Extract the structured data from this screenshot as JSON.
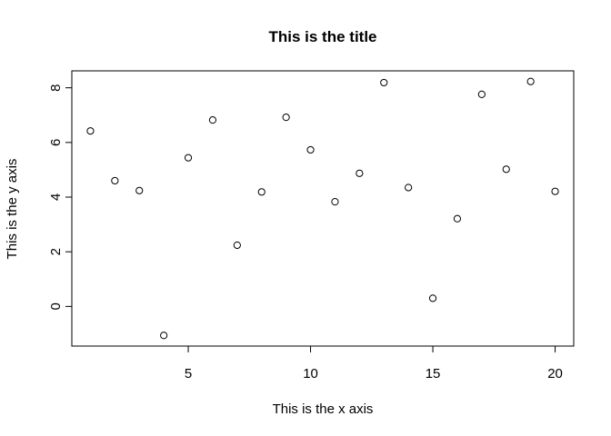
{
  "chart_data": {
    "type": "scatter",
    "title": "This is the title",
    "xlabel": "This is the x axis",
    "ylabel": "This is the y axis",
    "xlim": [
      0.24,
      20.76
    ],
    "ylim": [
      -1.45,
      8.62
    ],
    "xticks": [
      5,
      10,
      15,
      20
    ],
    "yticks": [
      0,
      2,
      4,
      6,
      8
    ],
    "grid": false,
    "legend": "none",
    "point_color": "#000000",
    "x": [
      1,
      2,
      3,
      4,
      5,
      6,
      7,
      8,
      9,
      10,
      11,
      12,
      13,
      14,
      15,
      16,
      17,
      18,
      19,
      20
    ],
    "y": [
      6.42,
      4.6,
      4.24,
      -1.06,
      5.44,
      6.82,
      2.24,
      4.19,
      6.92,
      5.73,
      3.83,
      4.87,
      8.19,
      4.35,
      0.3,
      3.21,
      7.76,
      5.02,
      8.23,
      4.21
    ]
  }
}
